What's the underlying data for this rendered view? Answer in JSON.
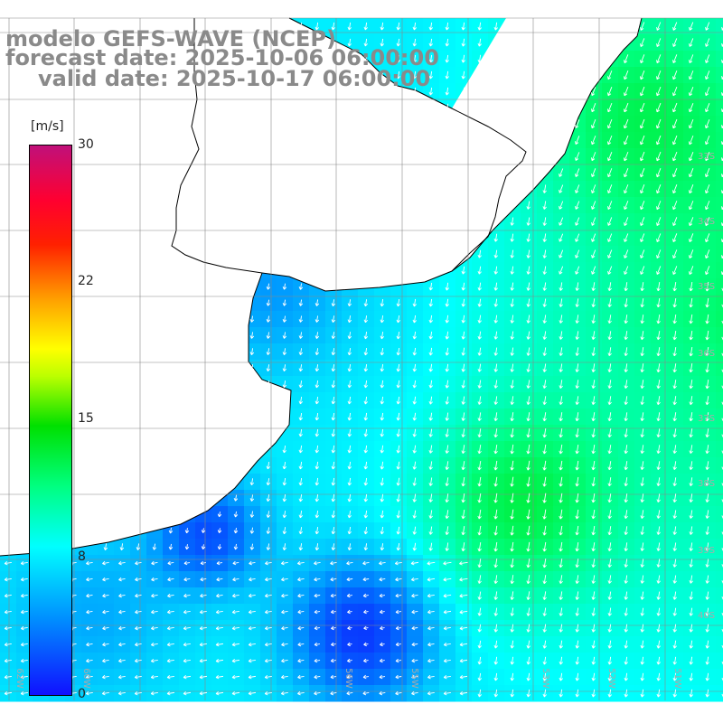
{
  "title": {
    "line1": "modelo GEFS-WAVE (NCEP)",
    "line2": "forecast date: 2025-10-06 06:00:00",
    "line3": "valid date: 2025-10-17 06:00:00"
  },
  "colorbar": {
    "unit": "[m/s]",
    "ticks": [
      {
        "label": "30",
        "value": 30
      },
      {
        "label": "22",
        "value": 22
      },
      {
        "label": "15",
        "value": 15
      },
      {
        "label": "8",
        "value": 8
      },
      {
        "label": "0",
        "value": 0
      }
    ],
    "colors": [
      "#1010ff",
      "#0090ff",
      "#00ffff",
      "#00ff80",
      "#00e000",
      "#ffff00",
      "#ff2000",
      "#c0107a"
    ]
  },
  "lat_labels": [
    "33S",
    "34S",
    "35S",
    "36S",
    "37S",
    "38S",
    "39S",
    "40S"
  ],
  "lon_labels": [
    "62W",
    "60W",
    "56W",
    "55W",
    "53W",
    "52W",
    "51W"
  ],
  "land_color": "#ffffff",
  "grid_color": "#888888"
}
